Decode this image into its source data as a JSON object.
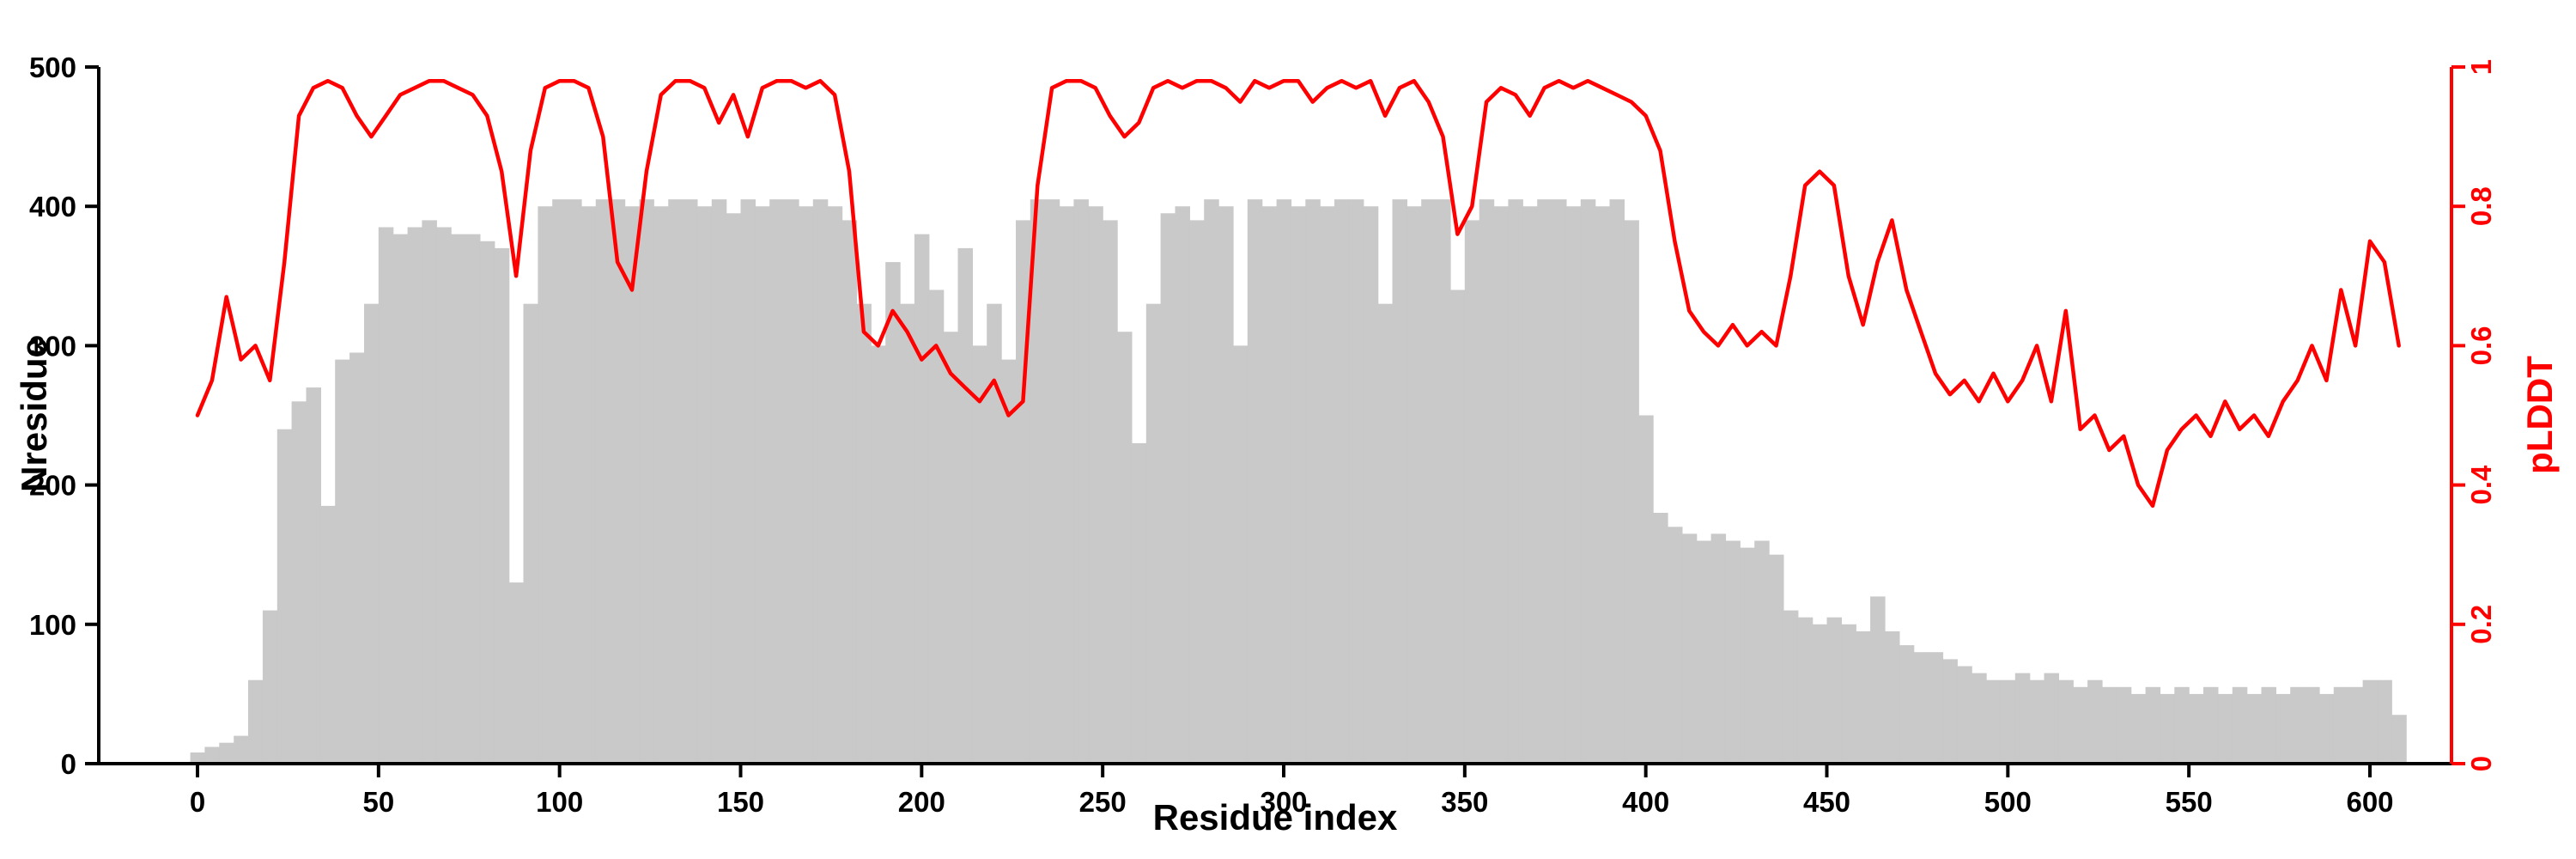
{
  "chart_data": {
    "type": "bar",
    "title": "",
    "xlabel": "Residue index",
    "ylabel_left": "Nresidue",
    "ylabel_right": "pLDDT",
    "grid": false,
    "legend": "none",
    "xlim": [
      -12,
      625
    ],
    "yleft_lim": [
      0,
      500
    ],
    "yright_lim": [
      0,
      1
    ],
    "bar_color": "#c9c9c9",
    "line_color": "#ff0000",
    "axis_color": "#000000",
    "x_ticks": [
      0,
      50,
      100,
      150,
      200,
      250,
      300,
      350,
      400,
      450,
      500,
      550,
      600
    ],
    "yleft_ticks": [
      0,
      100,
      200,
      300,
      400,
      500
    ],
    "yright_tick_values": [
      0,
      0.2,
      0.4,
      0.6,
      0.8,
      1
    ],
    "yright_tick_labels": [
      "0",
      "0.2",
      "0.4",
      "0.6",
      "0.8",
      "1"
    ],
    "series": [
      {
        "name": "Nresidue",
        "type": "bar",
        "axis": "left"
      },
      {
        "name": "pLDDT",
        "type": "line",
        "axis": "right"
      }
    ],
    "x": [
      0,
      4,
      8,
      12,
      16,
      20,
      24,
      28,
      32,
      36,
      40,
      44,
      48,
      52,
      56,
      60,
      64,
      68,
      72,
      76,
      80,
      84,
      88,
      92,
      96,
      100,
      104,
      108,
      112,
      116,
      120,
      124,
      128,
      132,
      136,
      140,
      144,
      148,
      152,
      156,
      160,
      164,
      168,
      172,
      176,
      180,
      184,
      188,
      192,
      196,
      200,
      204,
      208,
      212,
      216,
      220,
      224,
      228,
      232,
      236,
      240,
      244,
      248,
      252,
      256,
      260,
      264,
      268,
      272,
      276,
      280,
      284,
      288,
      292,
      296,
      300,
      304,
      308,
      312,
      316,
      320,
      324,
      328,
      332,
      336,
      340,
      344,
      348,
      352,
      356,
      360,
      364,
      368,
      372,
      376,
      380,
      384,
      388,
      392,
      396,
      400,
      404,
      408,
      412,
      416,
      420,
      424,
      428,
      432,
      436,
      440,
      444,
      448,
      452,
      456,
      460,
      464,
      468,
      472,
      476,
      480,
      484,
      488,
      492,
      496,
      500,
      504,
      508,
      512,
      516,
      520,
      524,
      528,
      532,
      536,
      540,
      544,
      548,
      552,
      556,
      560,
      564,
      568,
      572,
      576,
      580,
      584,
      588,
      592,
      596,
      600,
      604,
      608
    ],
    "nresidue": [
      8,
      12,
      15,
      20,
      60,
      110,
      240,
      260,
      270,
      185,
      290,
      295,
      330,
      385,
      380,
      385,
      390,
      385,
      380,
      380,
      375,
      370,
      130,
      330,
      400,
      405,
      405,
      400,
      405,
      405,
      400,
      405,
      400,
      405,
      405,
      400,
      405,
      395,
      405,
      400,
      405,
      405,
      400,
      405,
      400,
      390,
      330,
      300,
      360,
      330,
      380,
      340,
      310,
      370,
      300,
      330,
      290,
      390,
      405,
      405,
      400,
      405,
      400,
      390,
      310,
      230,
      330,
      395,
      400,
      390,
      405,
      400,
      300,
      405,
      400,
      405,
      400,
      405,
      400,
      405,
      405,
      400,
      330,
      405,
      400,
      405,
      405,
      340,
      390,
      405,
      400,
      405,
      400,
      405,
      405,
      400,
      405,
      400,
      405,
      390,
      250,
      180,
      170,
      165,
      160,
      165,
      160,
      155,
      160,
      150,
      110,
      105,
      100,
      105,
      100,
      95,
      120,
      95,
      85,
      80,
      80,
      75,
      70,
      65,
      60,
      60,
      65,
      60,
      65,
      60,
      55,
      60,
      55,
      55,
      50,
      55,
      50,
      55,
      50,
      55,
      50,
      55,
      50,
      55,
      50,
      55,
      55,
      50,
      55,
      55,
      60,
      60,
      35
    ],
    "plddt": [
      0.5,
      0.55,
      0.67,
      0.58,
      0.6,
      0.55,
      0.72,
      0.93,
      0.97,
      0.98,
      0.97,
      0.93,
      0.9,
      0.93,
      0.96,
      0.97,
      0.98,
      0.98,
      0.97,
      0.96,
      0.93,
      0.85,
      0.7,
      0.88,
      0.97,
      0.98,
      0.98,
      0.97,
      0.9,
      0.72,
      0.68,
      0.85,
      0.96,
      0.98,
      0.98,
      0.97,
      0.92,
      0.96,
      0.9,
      0.97,
      0.98,
      0.98,
      0.97,
      0.98,
      0.96,
      0.85,
      0.62,
      0.6,
      0.65,
      0.62,
      0.58,
      0.6,
      0.56,
      0.54,
      0.52,
      0.55,
      0.5,
      0.52,
      0.83,
      0.97,
      0.98,
      0.98,
      0.97,
      0.93,
      0.9,
      0.92,
      0.97,
      0.98,
      0.97,
      0.98,
      0.98,
      0.97,
      0.95,
      0.98,
      0.97,
      0.98,
      0.98,
      0.95,
      0.97,
      0.98,
      0.97,
      0.98,
      0.93,
      0.97,
      0.98,
      0.95,
      0.9,
      0.76,
      0.8,
      0.95,
      0.97,
      0.96,
      0.93,
      0.97,
      0.98,
      0.97,
      0.98,
      0.97,
      0.96,
      0.95,
      0.93,
      0.88,
      0.75,
      0.65,
      0.62,
      0.6,
      0.63,
      0.6,
      0.62,
      0.6,
      0.7,
      0.83,
      0.85,
      0.83,
      0.7,
      0.63,
      0.72,
      0.78,
      0.68,
      0.62,
      0.56,
      0.53,
      0.55,
      0.52,
      0.56,
      0.52,
      0.55,
      0.6,
      0.52,
      0.65,
      0.48,
      0.5,
      0.45,
      0.47,
      0.4,
      0.37,
      0.45,
      0.48,
      0.5,
      0.47,
      0.52,
      0.48,
      0.5,
      0.47,
      0.52,
      0.55,
      0.6,
      0.55,
      0.68,
      0.6,
      0.75,
      0.72,
      0.6
    ]
  }
}
